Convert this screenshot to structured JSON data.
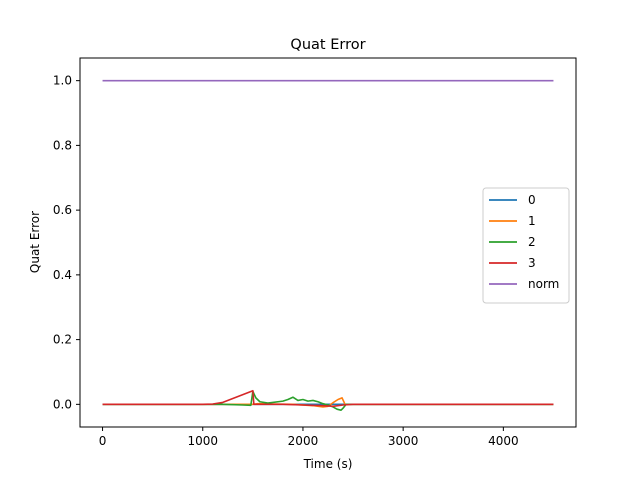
{
  "chart_data": {
    "type": "line",
    "title": "Quat Error",
    "xlabel": "Time (s)",
    "ylabel": "Quat Error",
    "xlim": [
      -225,
      4725
    ],
    "ylim": [
      -0.07,
      1.07
    ],
    "xticks": [
      0,
      1000,
      2000,
      3000,
      4000
    ],
    "yticks": [
      0.0,
      0.2,
      0.4,
      0.6,
      0.8,
      1.0
    ],
    "xtick_labels": [
      "0",
      "1000",
      "2000",
      "3000",
      "4000"
    ],
    "ytick_labels": [
      "0.0",
      "0.2",
      "0.4",
      "0.6",
      "0.8",
      "1.0"
    ],
    "grid": false,
    "legend_position": "center-right",
    "series": [
      {
        "name": "0",
        "color": "#1f77b4",
        "x": [
          0,
          500,
          1000,
          1500,
          2000,
          2500,
          3000,
          3500,
          4000,
          4500
        ],
        "y": [
          0,
          0,
          0,
          0,
          0,
          0,
          0,
          0,
          0,
          0
        ]
      },
      {
        "name": "1",
        "color": "#ff7f0e",
        "x": [
          0,
          500,
          1000,
          1500,
          1550,
          1700,
          1900,
          2100,
          2200,
          2250,
          2300,
          2350,
          2390,
          2420,
          2600,
          3000,
          3500,
          4000,
          4500
        ],
        "y": [
          0,
          0,
          0,
          0,
          0.002,
          0.001,
          0.0,
          -0.004,
          -0.008,
          -0.006,
          0.005,
          0.015,
          0.02,
          0.0,
          0,
          0,
          0,
          0,
          0
        ]
      },
      {
        "name": "2",
        "color": "#2ca02c",
        "x": [
          0,
          500,
          1000,
          1200,
          1400,
          1480,
          1500,
          1530,
          1570,
          1650,
          1800,
          1850,
          1900,
          1950,
          2000,
          2050,
          2100,
          2150,
          2200,
          2250,
          2300,
          2340,
          2380,
          2400,
          2430,
          2600,
          3000,
          3500,
          4000,
          4500
        ],
        "y": [
          0,
          0,
          0,
          0,
          -0.002,
          -0.003,
          0.04,
          0.02,
          0.008,
          0.004,
          0.01,
          0.015,
          0.022,
          0.012,
          0.015,
          0.01,
          0.012,
          0.008,
          0.002,
          -0.002,
          -0.008,
          -0.015,
          -0.018,
          -0.012,
          0.0,
          0,
          0,
          0,
          0,
          0
        ]
      },
      {
        "name": "3",
        "color": "#d62728",
        "x": [
          0,
          500,
          1000,
          1100,
          1200,
          1300,
          1400,
          1500,
          1510,
          1600,
          1800,
          2000,
          2200,
          2300,
          2400,
          2500,
          3000,
          3500,
          4000,
          4500
        ],
        "y": [
          0,
          0,
          0,
          0.001,
          0.006,
          0.018,
          0.03,
          0.042,
          0.0,
          0.0,
          0.0,
          -0.002,
          -0.004,
          -0.006,
          -0.002,
          0,
          0,
          0,
          0,
          0
        ]
      },
      {
        "name": "norm",
        "color": "#9467bd",
        "x": [
          0,
          500,
          1000,
          1500,
          2000,
          2500,
          3000,
          3500,
          4000,
          4500
        ],
        "y": [
          1,
          1,
          1,
          1,
          1,
          1,
          1,
          1,
          1,
          1
        ]
      }
    ]
  }
}
